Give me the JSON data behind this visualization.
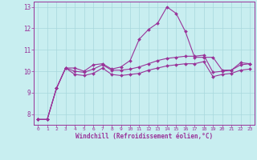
{
  "xlabel": "Windchill (Refroidissement éolien,°C)",
  "background_color": "#c8eef0",
  "grid_color": "#a8d8dc",
  "line_color": "#993399",
  "xlim": [
    -0.5,
    23.5
  ],
  "ylim": [
    7.5,
    13.25
  ],
  "xticks": [
    0,
    1,
    2,
    3,
    4,
    5,
    6,
    7,
    8,
    9,
    10,
    11,
    12,
    13,
    14,
    15,
    16,
    17,
    18,
    19,
    20,
    21,
    22,
    23
  ],
  "yticks": [
    8,
    9,
    10,
    11,
    12,
    13
  ],
  "line1_x": [
    0,
    1,
    2,
    3,
    4,
    5,
    6,
    7,
    8,
    9,
    10,
    11,
    12,
    13,
    14,
    15,
    16,
    17,
    18,
    19,
    20,
    21,
    22,
    23
  ],
  "line1_y": [
    7.75,
    7.75,
    9.2,
    10.15,
    10.15,
    10.0,
    10.3,
    10.35,
    10.1,
    10.2,
    10.5,
    11.5,
    11.95,
    12.25,
    13.0,
    12.7,
    11.85,
    10.65,
    10.65,
    10.65,
    10.05,
    10.05,
    10.4,
    10.35
  ],
  "line2_x": [
    0,
    1,
    2,
    3,
    4,
    5,
    6,
    7,
    8,
    9,
    10,
    11,
    12,
    13,
    14,
    15,
    16,
    17,
    18,
    19,
    20,
    21,
    22,
    23
  ],
  "line2_y": [
    7.75,
    7.75,
    9.2,
    10.15,
    10.0,
    9.95,
    10.1,
    10.3,
    10.05,
    10.05,
    10.1,
    10.2,
    10.35,
    10.5,
    10.6,
    10.65,
    10.7,
    10.7,
    10.75,
    9.95,
    10.0,
    10.05,
    10.3,
    10.35
  ],
  "line3_x": [
    0,
    1,
    2,
    3,
    4,
    5,
    6,
    7,
    8,
    9,
    10,
    11,
    12,
    13,
    14,
    15,
    16,
    17,
    18,
    19,
    20,
    21,
    22,
    23
  ],
  "line3_y": [
    7.75,
    7.75,
    9.2,
    10.15,
    9.85,
    9.8,
    9.9,
    10.15,
    9.85,
    9.8,
    9.85,
    9.9,
    10.05,
    10.15,
    10.25,
    10.3,
    10.35,
    10.35,
    10.45,
    9.75,
    9.85,
    9.9,
    10.05,
    10.1
  ]
}
